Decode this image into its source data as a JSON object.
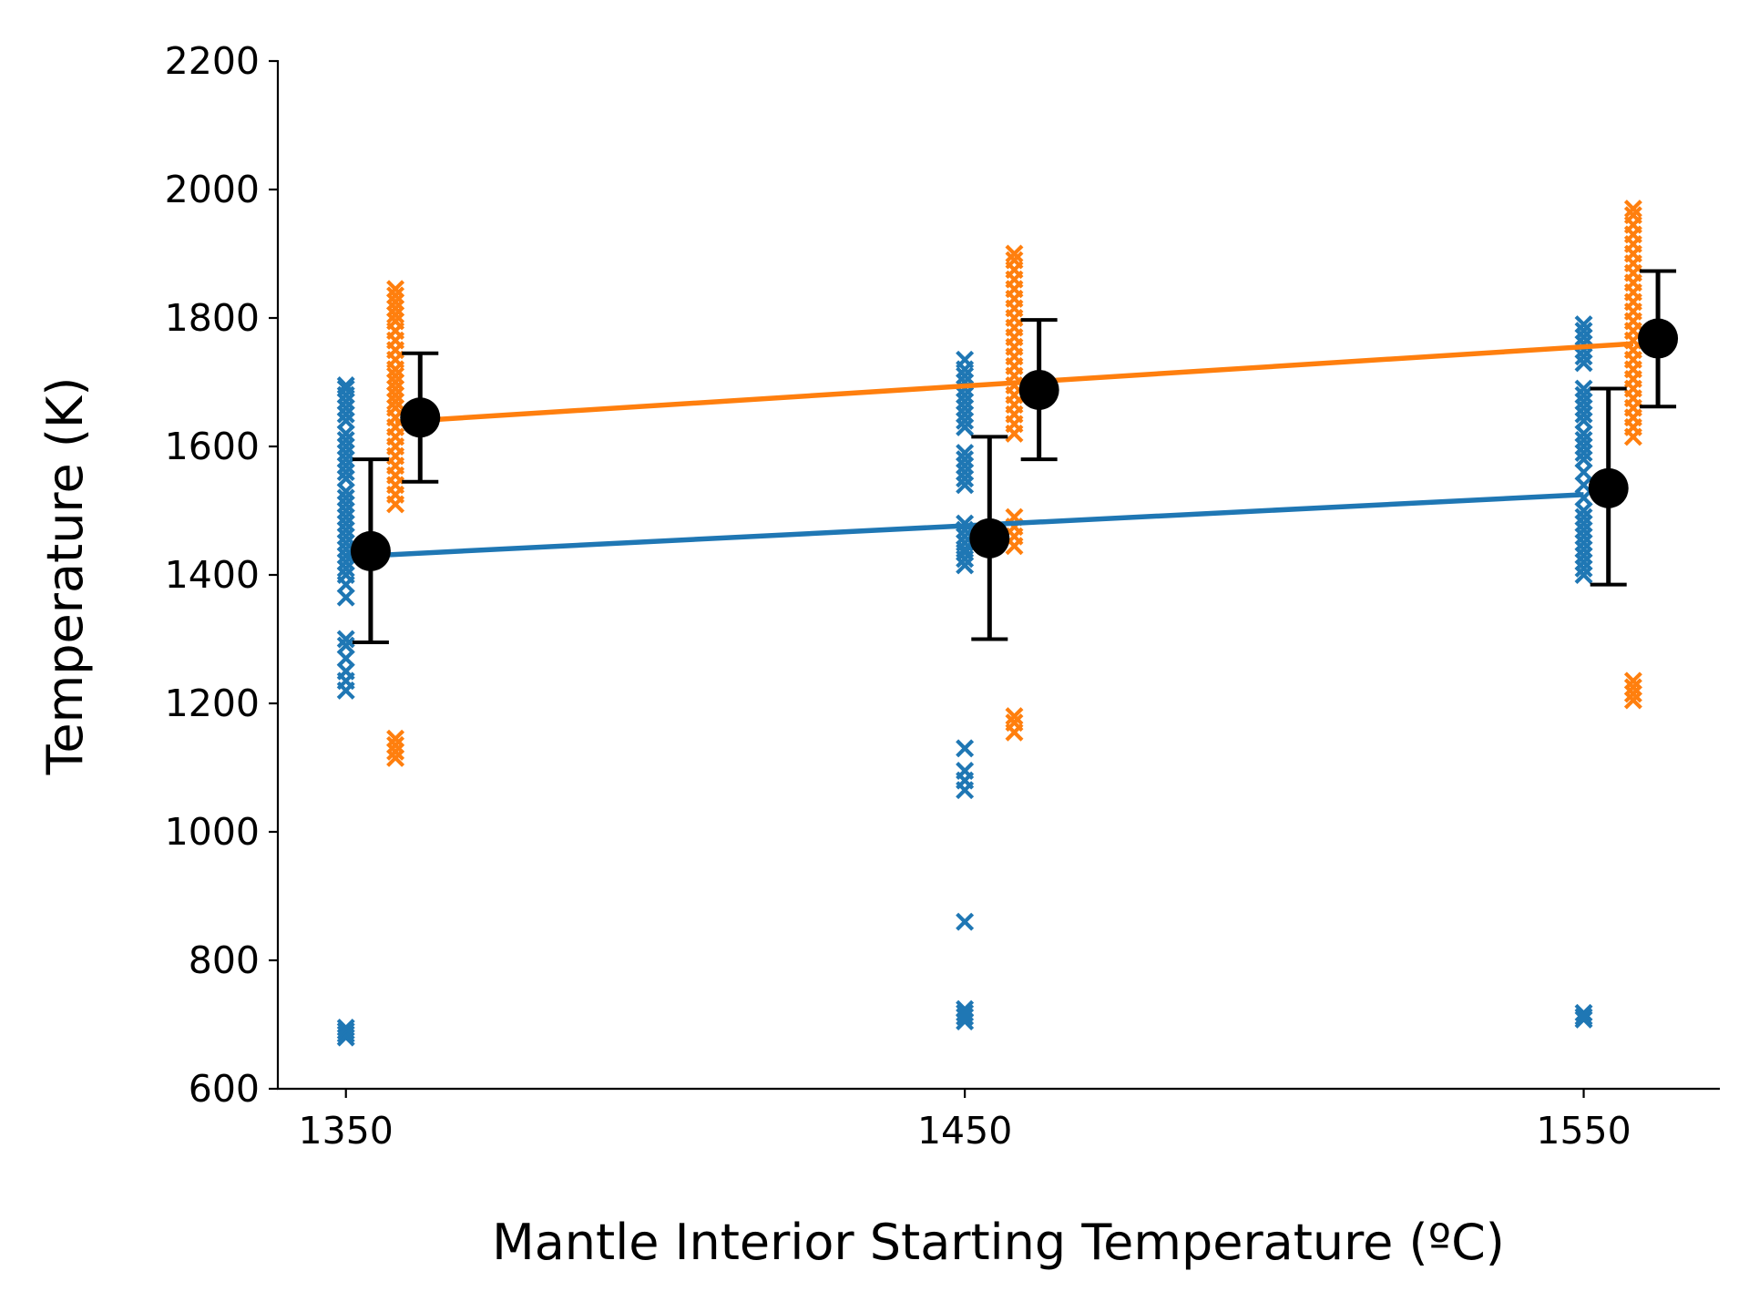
{
  "chart_data": {
    "type": "scatter",
    "title": "",
    "xlabel": "Mantle Interior Starting Temperature (ºC)",
    "ylabel": "Temperature (K)",
    "xticks": [
      "1350",
      "1450",
      "1550"
    ],
    "yticks": [
      "600",
      "800",
      "1000",
      "1200",
      "1400",
      "1600",
      "1800",
      "2000",
      "2200"
    ],
    "xlim": [
      1339,
      1572
    ],
    "ylim": [
      600,
      2200
    ],
    "grid": false,
    "legend": "none",
    "colors": {
      "blue": "#1f77b4",
      "orange": "#ff7f0e",
      "mean": "#000000"
    },
    "series": [
      {
        "color": "#1f77b4",
        "marker": "x",
        "scatter": [
          {
            "x": 1350,
            "y": [
              680,
              685,
              690,
              695,
              1220,
              1235,
              1250,
              1270,
              1290,
              1300,
              1365,
              1385,
              1400,
              1410,
              1420,
              1430,
              1440,
              1450,
              1460,
              1470,
              1480,
              1490,
              1500,
              1510,
              1520,
              1530,
              1550,
              1560,
              1570,
              1580,
              1590,
              1600,
              1610,
              1620,
              1640,
              1650,
              1660,
              1670,
              1680,
              1690,
              1695
            ]
          },
          {
            "x": 1450,
            "y": [
              705,
              712,
              718,
              724,
              860,
              1065,
              1080,
              1095,
              1130,
              1415,
              1425,
              1435,
              1440,
              1450,
              1460,
              1470,
              1480,
              1540,
              1550,
              1560,
              1570,
              1580,
              1590,
              1630,
              1640,
              1650,
              1660,
              1670,
              1680,
              1690,
              1700,
              1710,
              1720,
              1735
            ]
          },
          {
            "x": 1550,
            "y": [
              708,
              712,
              718,
              1400,
              1410,
              1420,
              1430,
              1440,
              1450,
              1460,
              1470,
              1480,
              1490,
              1500,
              1520,
              1540,
              1560,
              1580,
              1590,
              1600,
              1610,
              1620,
              1640,
              1650,
              1660,
              1670,
              1680,
              1690,
              1730,
              1740,
              1750,
              1760,
              1770,
              1780,
              1790
            ]
          }
        ],
        "fit_line": {
          "x": [
            1350,
            1550
          ],
          "y": [
            1428,
            1525
          ]
        },
        "mean": [
          {
            "x": 1354,
            "y": 1437,
            "err_low": 1295,
            "err_high": 1580
          },
          {
            "x": 1454,
            "y": 1457,
            "err_low": 1300,
            "err_high": 1615
          },
          {
            "x": 1554,
            "y": 1535,
            "err_low": 1385,
            "err_high": 1690
          }
        ]
      },
      {
        "color": "#ff7f0e",
        "marker": "x",
        "scatter": [
          {
            "x": 1358,
            "y": [
              1115,
              1125,
              1135,
              1145,
              1510,
              1525,
              1540,
              1555,
              1570,
              1585,
              1600,
              1615,
              1630,
              1645,
              1660,
              1670,
              1680,
              1690,
              1700,
              1710,
              1720,
              1735,
              1750,
              1765,
              1780,
              1795,
              1805,
              1815,
              1825,
              1835,
              1845
            ]
          },
          {
            "x": 1458,
            "y": [
              1155,
              1170,
              1180,
              1445,
              1460,
              1475,
              1490,
              1620,
              1635,
              1650,
              1665,
              1680,
              1695,
              1710,
              1725,
              1740,
              1755,
              1770,
              1785,
              1800,
              1815,
              1830,
              1845,
              1860,
              1875,
              1890,
              1900
            ]
          },
          {
            "x": 1558,
            "y": [
              1205,
              1215,
              1225,
              1235,
              1615,
              1630,
              1645,
              1660,
              1675,
              1690,
              1705,
              1720,
              1735,
              1750,
              1765,
              1780,
              1795,
              1810,
              1825,
              1840,
              1855,
              1870,
              1885,
              1900,
              1915,
              1930,
              1945,
              1960,
              1970
            ]
          }
        ],
        "fit_line": {
          "x": [
            1358,
            1558
          ],
          "y": [
            1638,
            1760
          ]
        },
        "mean": [
          {
            "x": 1362,
            "y": 1645,
            "err_low": 1545,
            "err_high": 1745
          },
          {
            "x": 1462,
            "y": 1688,
            "err_low": 1580,
            "err_high": 1797
          },
          {
            "x": 1562,
            "y": 1768,
            "err_low": 1662,
            "err_high": 1873
          }
        ]
      }
    ]
  }
}
